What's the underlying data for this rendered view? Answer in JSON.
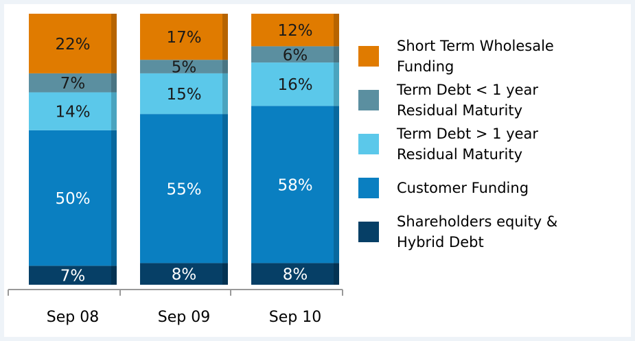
{
  "chart_data": {
    "type": "stacked-bar",
    "categories": [
      "Sep 08",
      "Sep 09",
      "Sep 10"
    ],
    "series": [
      {
        "name": "Shareholders equity & Hybrid Debt",
        "color": "#063f66",
        "values": [
          7,
          8,
          8
        ],
        "value_labels": [
          "7%",
          "8%",
          "8%"
        ]
      },
      {
        "name": "Customer Funding",
        "color": "#0a7fc1",
        "values": [
          50,
          55,
          58
        ],
        "value_labels": [
          "50%",
          "55%",
          "58%"
        ]
      },
      {
        "name": "Term Debt > 1 year Residual Maturity",
        "color": "#5bc8ea",
        "values": [
          14,
          15,
          16
        ],
        "value_labels": [
          "14%",
          "15%",
          "16%"
        ]
      },
      {
        "name": "Term Debt < 1 year Residual Maturity",
        "color": "#5b8fa0",
        "values": [
          7,
          5,
          6
        ],
        "value_labels": [
          "7%",
          "5%",
          "6%"
        ]
      },
      {
        "name": "Short Term Wholesale Funding",
        "color": "#e07b00",
        "values": [
          22,
          17,
          12
        ],
        "value_labels": [
          "22%",
          "17%",
          "12%"
        ]
      }
    ],
    "legend": "right"
  }
}
